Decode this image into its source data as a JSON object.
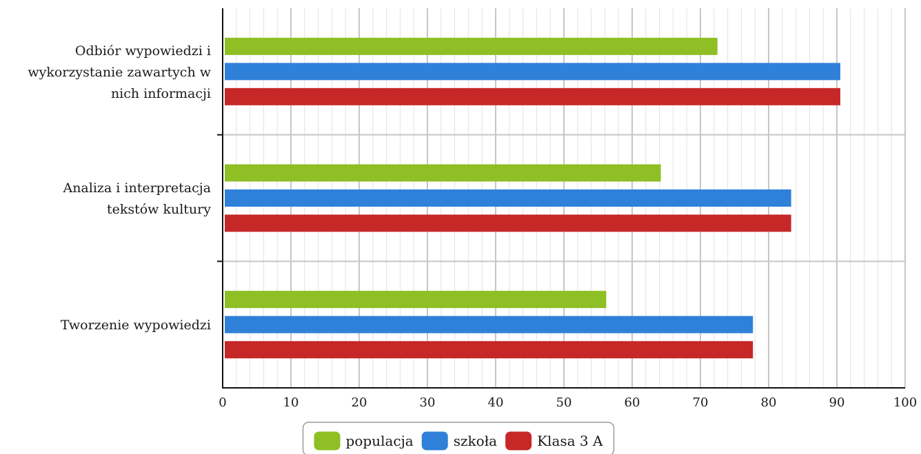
{
  "chart_data": {
    "type": "bar",
    "orientation": "horizontal",
    "categories": [
      [
        "Odbiór wypowiedzi i",
        "wykorzystanie zawartych w",
        "nich informacji"
      ],
      [
        "Analiza i interpretacja",
        "tekstów kultury"
      ],
      [
        "Tworzenie wypowiedzi"
      ]
    ],
    "series": [
      {
        "name": "populacja",
        "color": "#8ebf24",
        "values": [
          72.5,
          64.2,
          56.2
        ]
      },
      {
        "name": "szkoła",
        "color": "#2f80d8",
        "values": [
          90.5,
          83.3,
          77.7
        ]
      },
      {
        "name": "Klasa 3 A",
        "color": "#c62828",
        "values": [
          90.5,
          83.3,
          77.7
        ]
      }
    ],
    "xlim": [
      0,
      100
    ],
    "major_ticks": [
      0,
      10,
      20,
      30,
      40,
      50,
      60,
      70,
      80,
      90,
      100
    ],
    "minor_step": 2,
    "grid": true,
    "legend_position": "bottom-center"
  }
}
